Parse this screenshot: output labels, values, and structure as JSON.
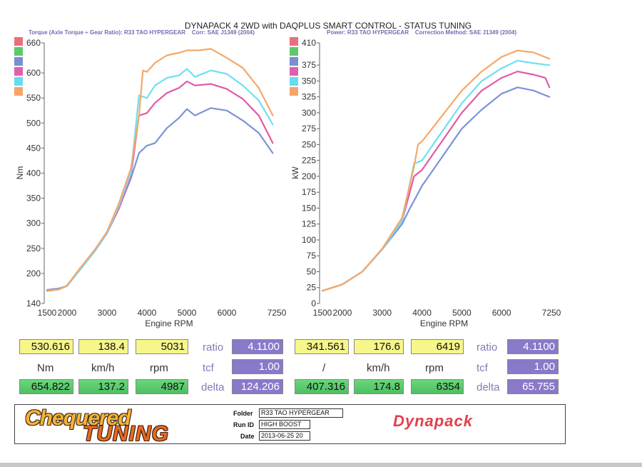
{
  "header": {
    "title": "DYNAPACK 4 2WD with DAQPLUS SMART CONTROL - STATUS TUNING",
    "left_subtitle": "Torque (Axle Torque ÷ Gear Ratio): R33 TAO HYPERGEAR    Corr: SAE J1349 (2004)",
    "right_subtitle": "Power: R33 TAO HYPERGEAR    Correction Method: SAE J1349 (2004)"
  },
  "colors": {
    "series": [
      "#e8707a",
      "#5cc96c",
      "#7a8fd0",
      "#e060b0",
      "#66dcef",
      "#f4a56a"
    ],
    "blue": "#7b93d6",
    "pink": "#e25aa5",
    "cyan": "#6fe0f2",
    "orange": "#f4a86a"
  },
  "chart_data": [
    {
      "type": "line",
      "title": "",
      "xlabel": "Engine RPM",
      "ylabel": "Nm",
      "xlim": [
        1500,
        7250
      ],
      "ylim": [
        140,
        660
      ],
      "x_ticks": [
        "1500",
        "2000",
        "3000",
        "4000",
        "5000",
        "6000",
        "7250"
      ],
      "y_ticks": [
        "140",
        "200",
        "250",
        "300",
        "350",
        "400",
        "450",
        "500",
        "550",
        "600",
        "660"
      ],
      "series": [
        {
          "color": "blue",
          "points": [
            [
              1500,
              167
            ],
            [
              1800,
              170
            ],
            [
              2000,
              175
            ],
            [
              2300,
              205
            ],
            [
              2700,
              245
            ],
            [
              3000,
              280
            ],
            [
              3300,
              330
            ],
            [
              3600,
              390
            ],
            [
              3800,
              440
            ],
            [
              4000,
              455
            ],
            [
              4200,
              460
            ],
            [
              4500,
              490
            ],
            [
              4800,
              510
            ],
            [
              5000,
              528
            ],
            [
              5200,
              515
            ],
            [
              5600,
              530
            ],
            [
              6000,
              525
            ],
            [
              6400,
              505
            ],
            [
              6800,
              480
            ],
            [
              7150,
              440
            ]
          ]
        },
        {
          "color": "pink",
          "points": [
            [
              1500,
              165
            ],
            [
              1800,
              168
            ],
            [
              2000,
              175
            ],
            [
              2300,
              205
            ],
            [
              2700,
              245
            ],
            [
              3000,
              280
            ],
            [
              3300,
              330
            ],
            [
              3600,
              395
            ],
            [
              3800,
              515
            ],
            [
              4000,
              520
            ],
            [
              4200,
              540
            ],
            [
              4500,
              560
            ],
            [
              4800,
              570
            ],
            [
              5000,
              583
            ],
            [
              5200,
              575
            ],
            [
              5600,
              578
            ],
            [
              6000,
              568
            ],
            [
              6400,
              548
            ],
            [
              6800,
              515
            ],
            [
              7150,
              460
            ]
          ]
        },
        {
          "color": "cyan",
          "points": [
            [
              1500,
              165
            ],
            [
              1800,
              168
            ],
            [
              2000,
              175
            ],
            [
              2300,
              205
            ],
            [
              2700,
              245
            ],
            [
              3000,
              280
            ],
            [
              3300,
              335
            ],
            [
              3600,
              400
            ],
            [
              3800,
              555
            ],
            [
              4000,
              550
            ],
            [
              4200,
              575
            ],
            [
              4500,
              590
            ],
            [
              4800,
              595
            ],
            [
              5000,
              608
            ],
            [
              5200,
              592
            ],
            [
              5600,
              605
            ],
            [
              6000,
              598
            ],
            [
              6400,
              575
            ],
            [
              6800,
              545
            ],
            [
              7150,
              497
            ]
          ]
        },
        {
          "color": "orange",
          "points": [
            [
              1500,
              165
            ],
            [
              1800,
              168
            ],
            [
              2000,
              176
            ],
            [
              2300,
              208
            ],
            [
              2700,
              248
            ],
            [
              3000,
              283
            ],
            [
              3300,
              340
            ],
            [
              3600,
              410
            ],
            [
              3800,
              515
            ],
            [
              3900,
              605
            ],
            [
              4000,
              602
            ],
            [
              4200,
              620
            ],
            [
              4500,
              635
            ],
            [
              4800,
              640
            ],
            [
              5000,
              645
            ],
            [
              5300,
              645
            ],
            [
              5600,
              648
            ],
            [
              6000,
              630
            ],
            [
              6400,
              610
            ],
            [
              6800,
              570
            ],
            [
              7150,
              515
            ]
          ]
        }
      ]
    },
    {
      "type": "line",
      "title": "",
      "xlabel": "Engine RPM",
      "ylabel": "kW",
      "xlim": [
        1500,
        7250
      ],
      "ylim": [
        0,
        410
      ],
      "x_ticks": [
        "1500",
        "2000",
        "3000",
        "4000",
        "5000",
        "6000",
        "7250"
      ],
      "y_ticks": [
        "0",
        "25",
        "50",
        "75",
        "100",
        "125",
        "150",
        "175",
        "200",
        "225",
        "250",
        "275",
        "300",
        "325",
        "350",
        "375",
        "410"
      ],
      "series": [
        {
          "color": "blue",
          "points": [
            [
              1500,
              20
            ],
            [
              2000,
              30
            ],
            [
              2500,
              50
            ],
            [
              3000,
              85
            ],
            [
              3500,
              125
            ],
            [
              3700,
              150
            ],
            [
              4000,
              185
            ],
            [
              4500,
              230
            ],
            [
              5000,
              275
            ],
            [
              5500,
              305
            ],
            [
              6000,
              330
            ],
            [
              6400,
              340
            ],
            [
              6800,
              335
            ],
            [
              7200,
              325
            ]
          ]
        },
        {
          "color": "pink",
          "points": [
            [
              1500,
              20
            ],
            [
              2000,
              30
            ],
            [
              2500,
              50
            ],
            [
              3000,
              85
            ],
            [
              3500,
              130
            ],
            [
              3800,
              200
            ],
            [
              4000,
              210
            ],
            [
              4500,
              255
            ],
            [
              5000,
              300
            ],
            [
              5500,
              335
            ],
            [
              6000,
              355
            ],
            [
              6400,
              365
            ],
            [
              6800,
              360
            ],
            [
              7100,
              355
            ],
            [
              7200,
              340
            ]
          ]
        },
        {
          "color": "cyan",
          "points": [
            [
              1500,
              20
            ],
            [
              2000,
              30
            ],
            [
              2500,
              50
            ],
            [
              3000,
              85
            ],
            [
              3500,
              130
            ],
            [
              3800,
              220
            ],
            [
              4000,
              225
            ],
            [
              4500,
              270
            ],
            [
              5000,
              315
            ],
            [
              5500,
              350
            ],
            [
              6000,
              370
            ],
            [
              6400,
              382
            ],
            [
              6800,
              378
            ],
            [
              7200,
              375
            ]
          ]
        },
        {
          "color": "orange",
          "points": [
            [
              1500,
              20
            ],
            [
              2000,
              30
            ],
            [
              2500,
              50
            ],
            [
              3000,
              86
            ],
            [
              3500,
              135
            ],
            [
              3800,
              215
            ],
            [
              3900,
              250
            ],
            [
              4000,
              255
            ],
            [
              4500,
              295
            ],
            [
              5000,
              335
            ],
            [
              5500,
              365
            ],
            [
              6000,
              388
            ],
            [
              6400,
              398
            ],
            [
              6800,
              395
            ],
            [
              7200,
              385
            ]
          ]
        }
      ]
    }
  ],
  "readouts": {
    "left": {
      "torque": "530.616",
      "speed": "138.4",
      "rpm": "5031",
      "unit_torque": "Nm",
      "unit_speed": "km/h",
      "unit_rpm": "rpm",
      "torque2": "654.822",
      "speed2": "137.2",
      "rpm2": "4987",
      "ratio_label": "ratio",
      "ratio": "4.1100",
      "tcf_label": "tcf",
      "tcf": "1.00",
      "delta_label": "delta",
      "delta": "124.206"
    },
    "right": {
      "power": "341.561",
      "speed": "176.6",
      "rpm": "6419",
      "unit_power": "/",
      "unit_speed": "km/h",
      "unit_rpm": "rpm",
      "power2": "407.316",
      "speed2": "174.8",
      "rpm2": "6354",
      "ratio_label": "ratio",
      "ratio": "4.1100",
      "tcf_label": "tcf",
      "tcf": "1.00",
      "delta_label": "delta",
      "delta": "65.755"
    }
  },
  "footer": {
    "logo_line1": "Chequered",
    "logo_line2": "TUNING",
    "folder_label": "Folder",
    "folder_value": "R33 TAO HYPERGEAR",
    "runid_label": "Run ID",
    "runid_value": "HIGH BOOST",
    "date_label": "Date",
    "date_value": "2013-06-25 20",
    "brand": "Dynapack"
  }
}
